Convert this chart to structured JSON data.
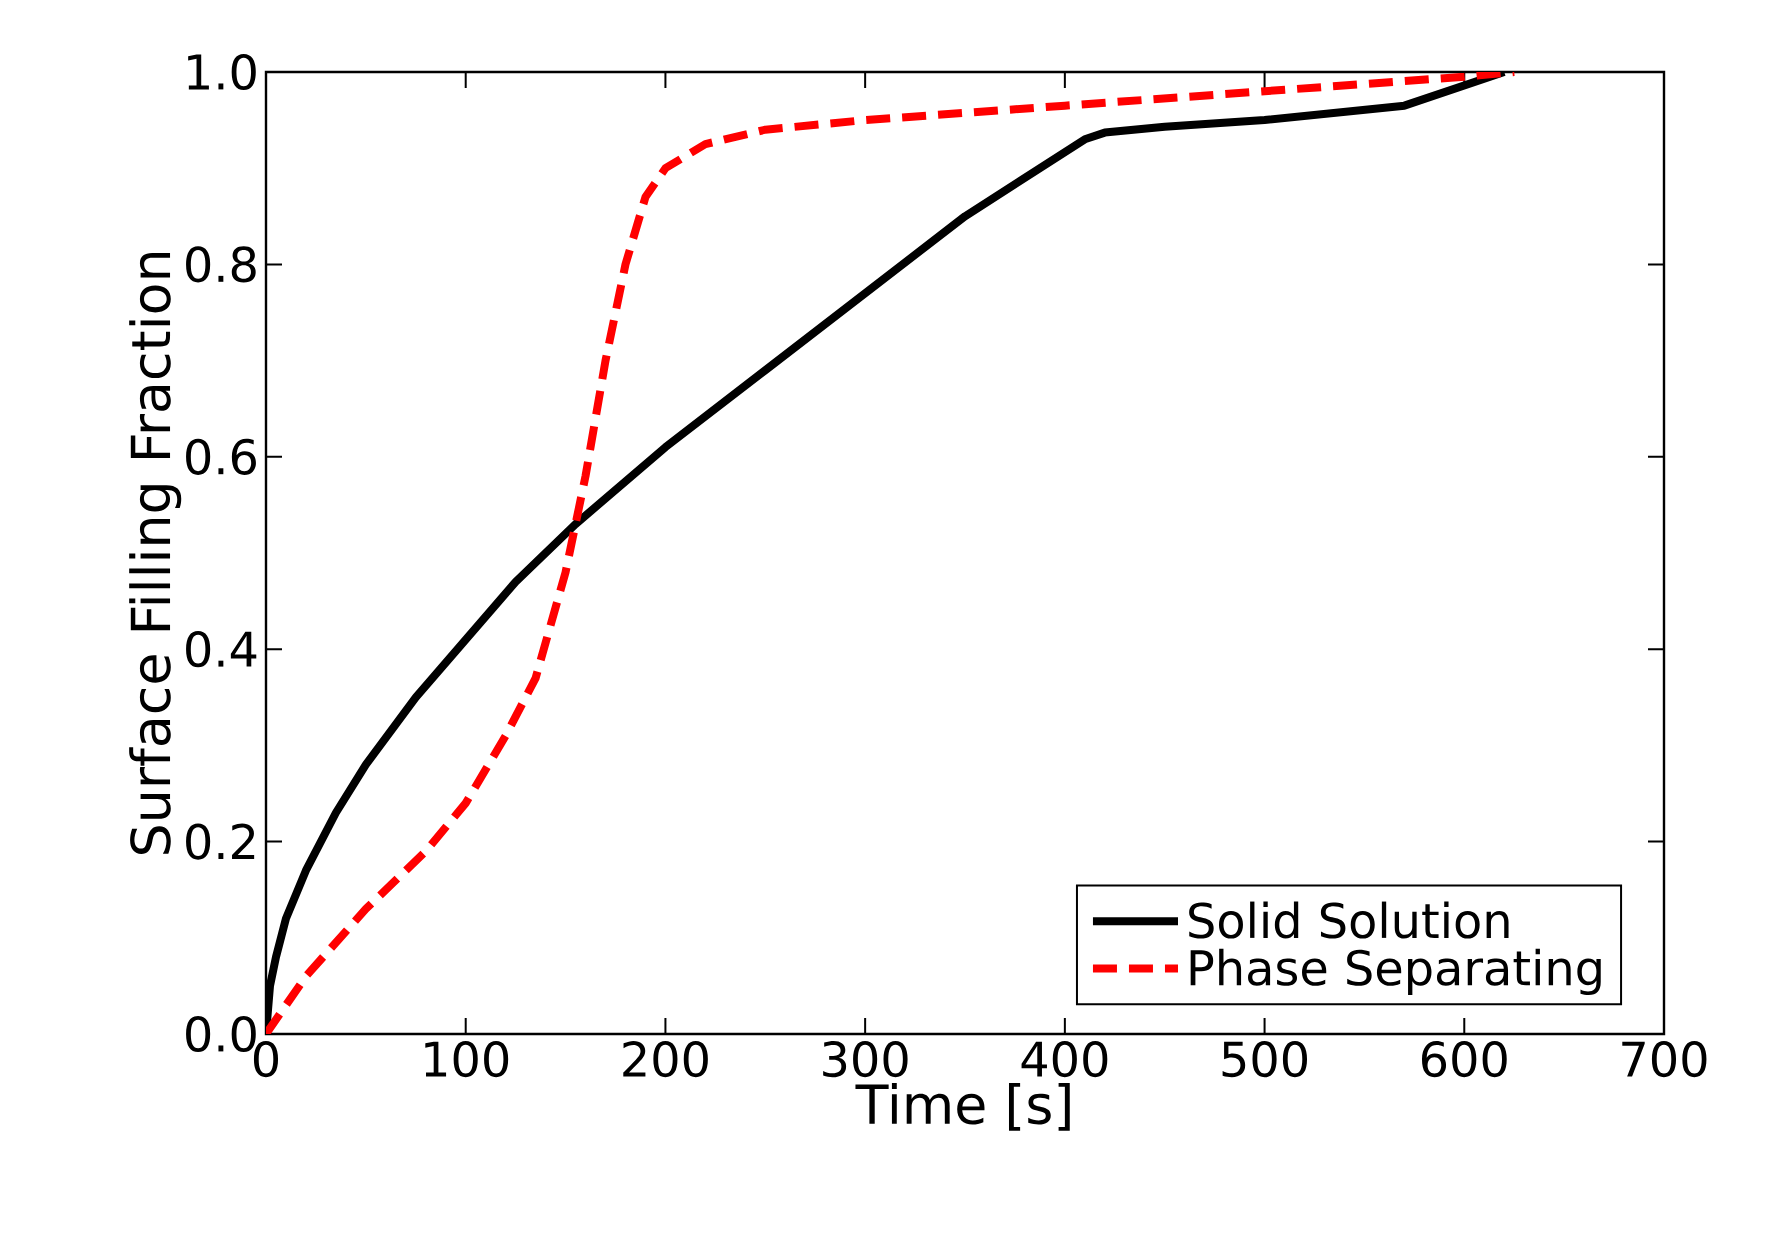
{
  "chart_data": {
    "type": "line",
    "xlabel": "Time [s]",
    "ylabel": "Surface Filling Fraction",
    "xlim": [
      0,
      700
    ],
    "ylim": [
      0,
      1.0
    ],
    "xticks": [
      0,
      100,
      200,
      300,
      400,
      500,
      600,
      700
    ],
    "yticks": [
      {
        "value": 0,
        "label": "0.0"
      },
      {
        "value": 0.2,
        "label": "0.2"
      },
      {
        "value": 0.4,
        "label": "0.4"
      },
      {
        "value": 0.6,
        "label": "0.6"
      },
      {
        "value": 0.8,
        "label": "0.8"
      },
      {
        "value": 1.0,
        "label": "1.0"
      }
    ],
    "legend": "bottom right",
    "grid": false,
    "series": [
      {
        "name": "Solid Solution",
        "color": "#000000",
        "line_style": "solid",
        "x": [
          0,
          2,
          5,
          10,
          20,
          35,
          50,
          75,
          100,
          125,
          155,
          200,
          250,
          300,
          350,
          410,
          420,
          450,
          500,
          570,
          620
        ],
        "values": [
          0,
          0.05,
          0.08,
          0.12,
          0.17,
          0.23,
          0.28,
          0.35,
          0.41,
          0.47,
          0.53,
          0.61,
          0.69,
          0.77,
          0.85,
          0.93,
          0.937,
          0.943,
          0.95,
          0.965,
          1.0
        ]
      },
      {
        "name": "Phase Separating",
        "color": "#ff0000",
        "line_style": "dashed",
        "x": [
          0,
          20,
          50,
          80,
          100,
          120,
          135,
          150,
          160,
          170,
          180,
          190,
          200,
          220,
          250,
          300,
          400,
          500,
          600,
          625
        ],
        "values": [
          0,
          0.06,
          0.13,
          0.19,
          0.24,
          0.31,
          0.37,
          0.48,
          0.58,
          0.7,
          0.8,
          0.87,
          0.9,
          0.925,
          0.94,
          0.95,
          0.965,
          0.98,
          0.995,
          1.0
        ]
      }
    ]
  }
}
